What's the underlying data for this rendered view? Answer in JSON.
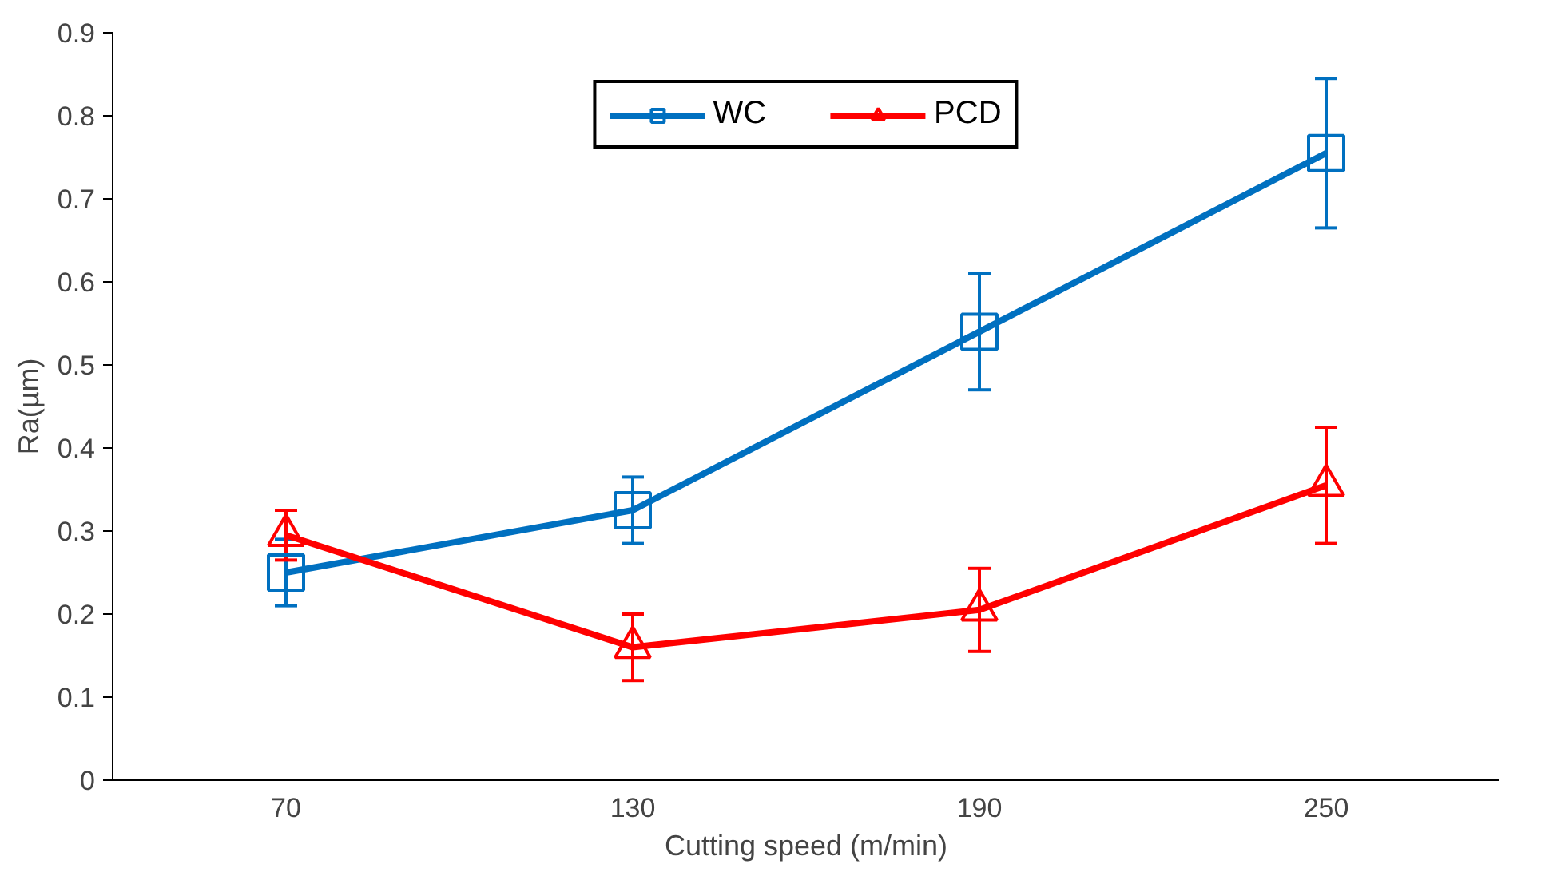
{
  "chart_data": {
    "type": "line",
    "xlabel": "Cutting speed (m/min)",
    "ylabel": "Ra(µm)",
    "categories": [
      "70",
      "130",
      "190",
      "250"
    ],
    "series": [
      {
        "name": "WC",
        "color": "#0070c0",
        "marker": "square",
        "values": [
          0.25,
          0.325,
          0.54,
          0.755
        ],
        "errors": [
          0.04,
          0.04,
          0.07,
          0.09
        ]
      },
      {
        "name": "PCD",
        "color": "#ff0000",
        "marker": "triangle",
        "values": [
          0.295,
          0.16,
          0.205,
          0.355
        ],
        "errors": [
          0.03,
          0.04,
          0.05,
          0.07
        ]
      }
    ],
    "ylim": [
      0,
      0.9
    ],
    "yticks": [
      0,
      0.1,
      0.2,
      0.3,
      0.4,
      0.5,
      0.6,
      0.7,
      0.8,
      0.9
    ],
    "grid": false,
    "legend": "top",
    "line_style": "solid"
  }
}
